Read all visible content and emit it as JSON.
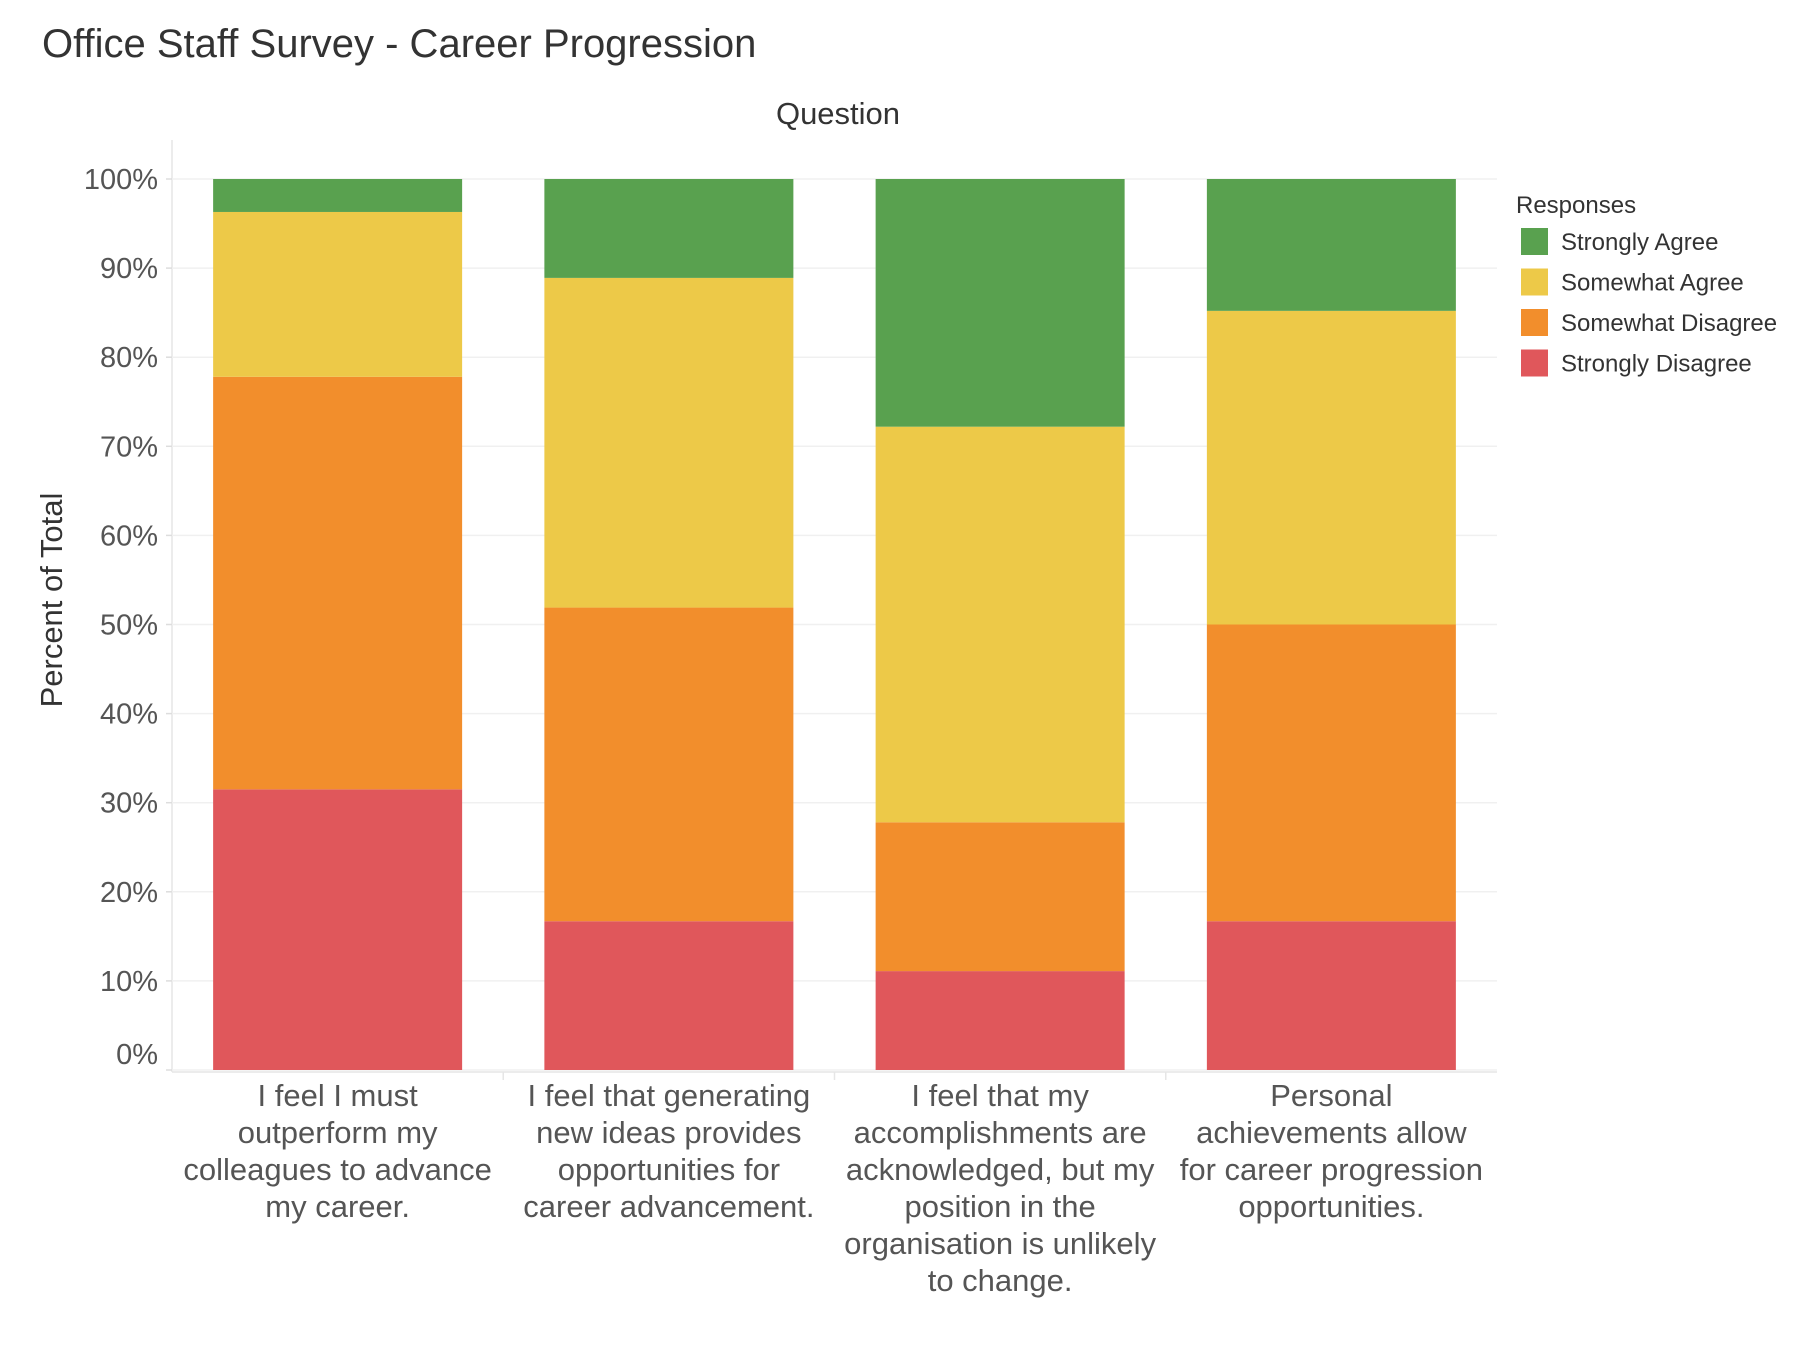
{
  "chart_data": {
    "type": "bar",
    "stacked": true,
    "title": "Office Staff Survey - Career Progression",
    "column_header": "Question",
    "ylabel": "Percent of Total",
    "ylim": [
      0,
      100
    ],
    "y_ticks": [
      "0%",
      "10%",
      "20%",
      "30%",
      "40%",
      "50%",
      "60%",
      "70%",
      "80%",
      "90%",
      "100%"
    ],
    "y_tick_values": [
      0,
      10,
      20,
      30,
      40,
      50,
      60,
      70,
      80,
      90,
      100
    ],
    "grid": true,
    "categories": [
      [
        "I feel I must",
        "outperform my",
        "colleagues to advance",
        "my career."
      ],
      [
        "I feel that generating",
        "new ideas provides",
        "opportunities for",
        "career advancement."
      ],
      [
        "I feel that my",
        "accomplishments are",
        "acknowledged, but my",
        "position in the",
        "organisation is unlikely",
        "to change."
      ],
      [
        "Personal",
        "achievements allow",
        "for career progression",
        "opportunities."
      ]
    ],
    "legend": {
      "title": "Responses",
      "position": "top-right"
    },
    "series": [
      {
        "name": "Strongly Disagree",
        "color": "#e0575b",
        "values": [
          31.5,
          16.7,
          11.1,
          16.7
        ]
      },
      {
        "name": "Somewhat Disagree",
        "color": "#f28e2c",
        "values": [
          46.3,
          35.2,
          16.7,
          33.3
        ]
      },
      {
        "name": "Somewhat Agree",
        "color": "#edc948",
        "values": [
          18.5,
          37.0,
          44.4,
          35.2
        ]
      },
      {
        "name": "Strongly Agree",
        "color": "#59a14f",
        "values": [
          3.7,
          11.1,
          27.8,
          14.8
        ]
      }
    ],
    "legend_order": [
      "Strongly Agree",
      "Somewhat Agree",
      "Somewhat Disagree",
      "Strongly Disagree"
    ]
  }
}
